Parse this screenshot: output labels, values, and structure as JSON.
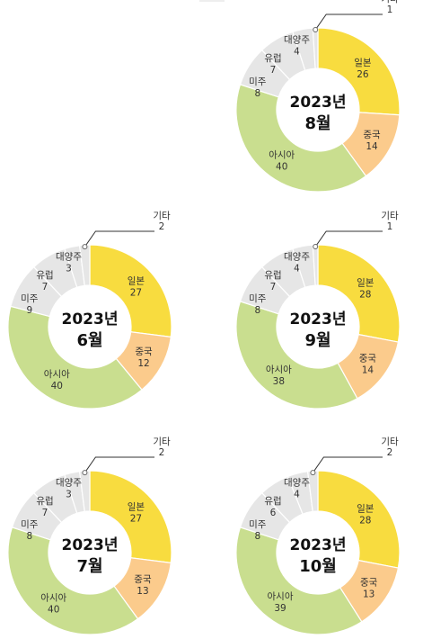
{
  "colors": {
    "일본": "#f8dc3f",
    "중국": "#fbcb8c",
    "아시아": "#c9de8f",
    "미주": "#e6e6e6",
    "유럽": "#e6e6e6",
    "대양주": "#e6e6e6",
    "기타": "#e6e6e6"
  },
  "chart_data": [
    {
      "type": "pie",
      "center_year": "2023년",
      "center_month": "8월",
      "categories": [
        "일본",
        "중국",
        "아시아",
        "미주",
        "유럽",
        "대양주",
        "기타"
      ],
      "values": [
        26,
        14,
        40,
        8,
        7,
        4,
        1
      ]
    },
    {
      "type": "pie",
      "center_year": "2023년",
      "center_month": "6월",
      "categories": [
        "일본",
        "중국",
        "아시아",
        "미주",
        "유럽",
        "대양주",
        "기타"
      ],
      "values": [
        27,
        12,
        40,
        9,
        7,
        3,
        2
      ]
    },
    {
      "type": "pie",
      "center_year": "2023년",
      "center_month": "9월",
      "categories": [
        "일본",
        "중국",
        "아시아",
        "미주",
        "유럽",
        "대양주",
        "기타"
      ],
      "values": [
        28,
        14,
        38,
        8,
        7,
        4,
        1
      ]
    },
    {
      "type": "pie",
      "center_year": "2023년",
      "center_month": "7월",
      "categories": [
        "일본",
        "중국",
        "아시아",
        "미주",
        "유럽",
        "대양주",
        "기타"
      ],
      "values": [
        27,
        13,
        40,
        8,
        7,
        3,
        2
      ]
    },
    {
      "type": "pie",
      "center_year": "2023년",
      "center_month": "10월",
      "categories": [
        "일본",
        "중국",
        "아시아",
        "미주",
        "유럽",
        "대양주",
        "기타"
      ],
      "values": [
        28,
        13,
        39,
        8,
        6,
        4,
        2
      ]
    }
  ]
}
